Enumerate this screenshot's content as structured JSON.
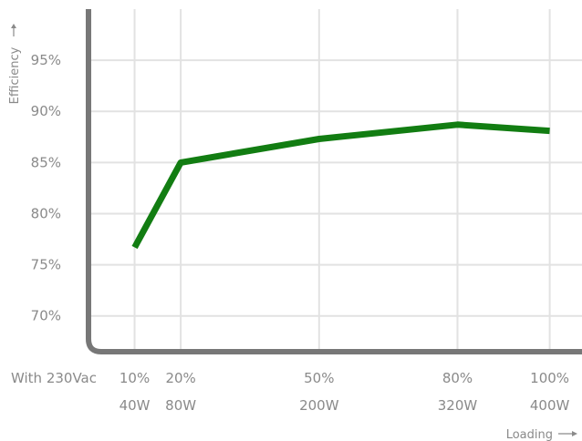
{
  "chart_data": {
    "type": "line",
    "xlabel": "Loading",
    "ylabel": "Efficiency",
    "condition_label": "With 230Vac",
    "ylim": [
      66.5,
      100
    ],
    "y_ticks": [
      "70%",
      "75%",
      "80%",
      "85%",
      "90%",
      "95%"
    ],
    "y_tick_values": [
      70,
      75,
      80,
      85,
      90,
      95
    ],
    "x": [
      10,
      20,
      50,
      80,
      100
    ],
    "x_tick_labels": [
      "10%",
      "20%",
      "50%",
      "80%",
      "100%"
    ],
    "x_tick_watts": [
      "40W",
      "80W",
      "200W",
      "320W",
      "400W"
    ],
    "xlim": [
      0,
      107
    ],
    "grid": true,
    "series": [
      {
        "values": [
          76.7,
          85.0,
          87.3,
          88.7,
          88.1
        ]
      }
    ],
    "colors": {
      "line": "#127d12",
      "axis": "#777777",
      "grid": "#e2e2e2",
      "text": "#8a8a8a"
    }
  }
}
